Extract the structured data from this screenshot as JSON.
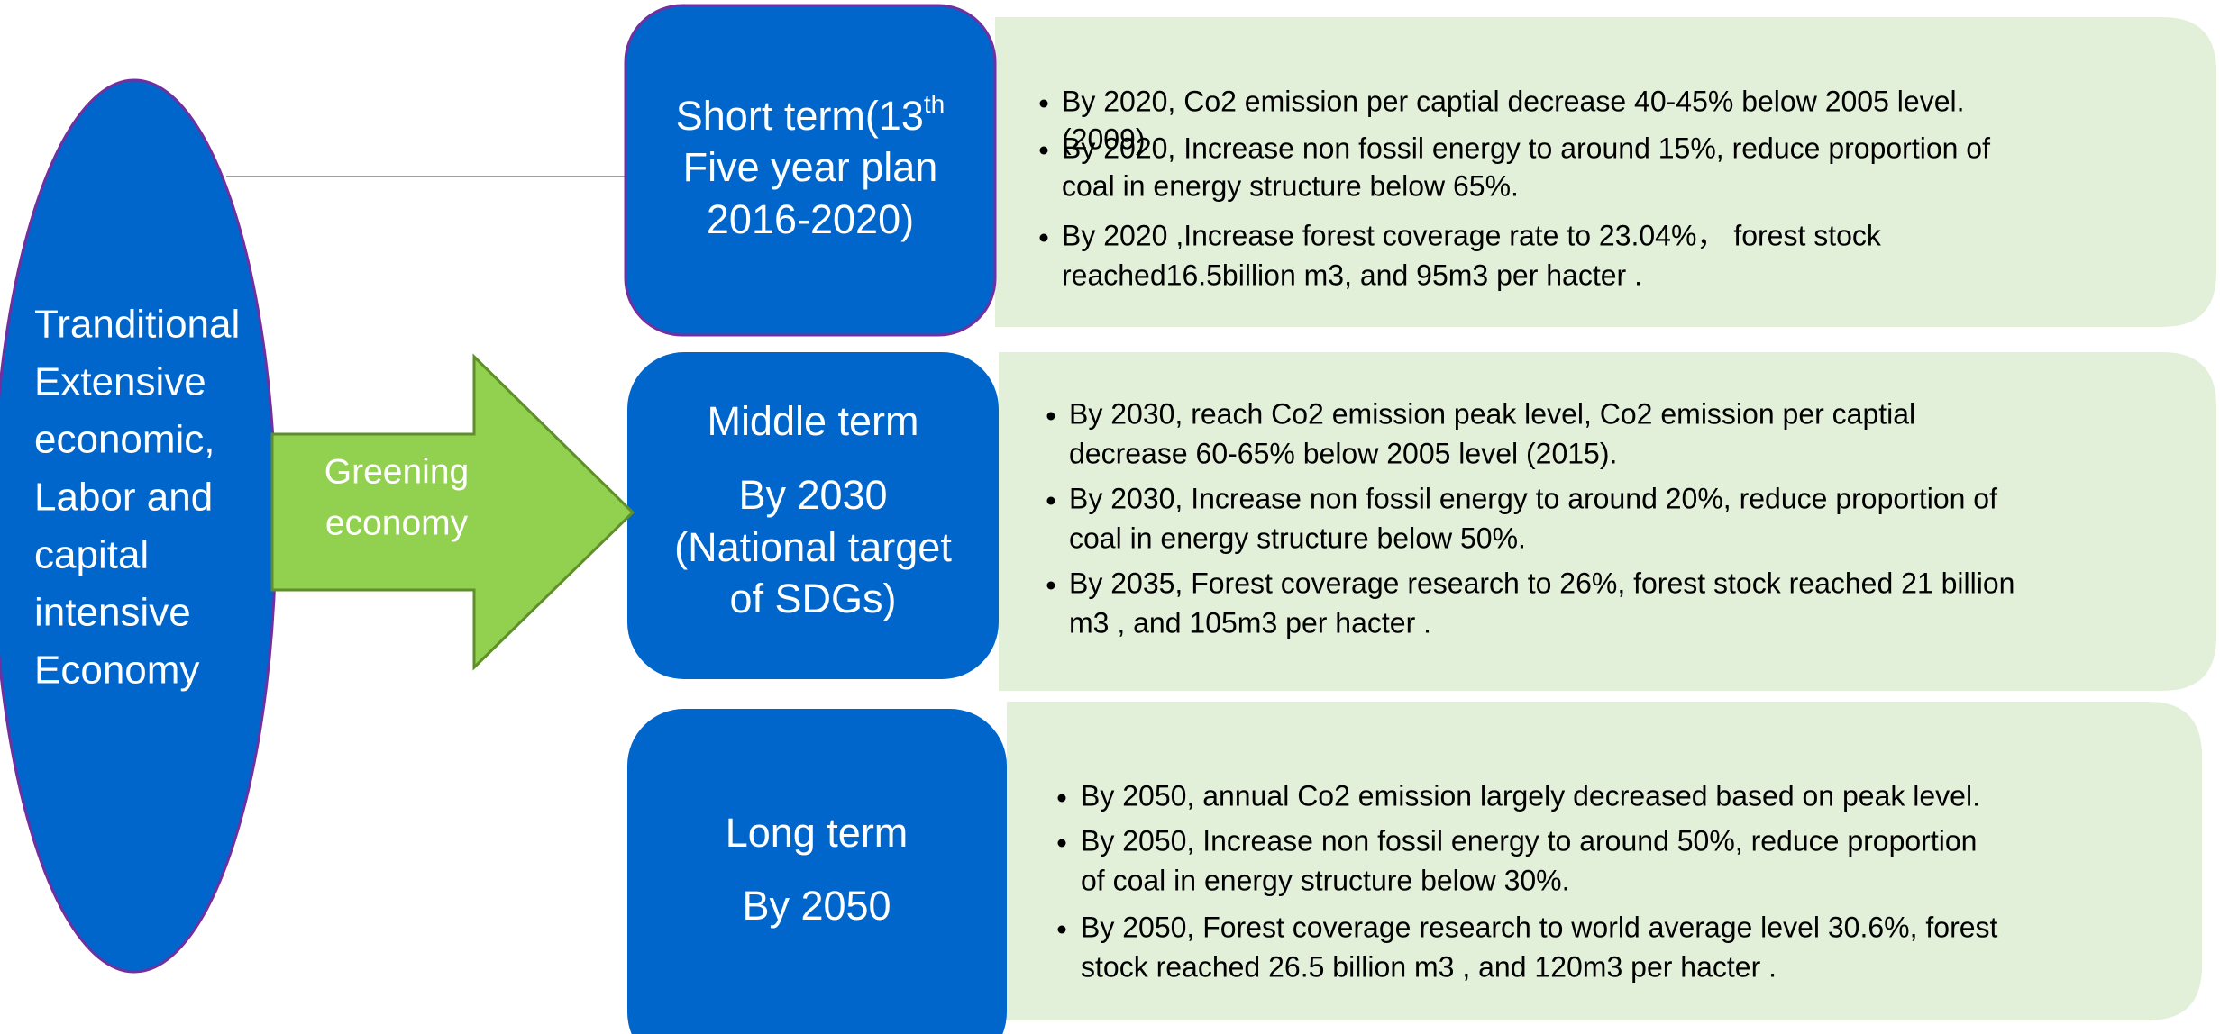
{
  "ellipse": {
    "lines": [
      "Tranditional",
      "Extensive",
      "economic,",
      "Labor and",
      "capital",
      "intensive",
      "Economy"
    ]
  },
  "arrow": {
    "lines": [
      "Greening",
      "economy"
    ]
  },
  "stages": [
    {
      "title_lines": [
        "Short term(13",
        "Five year plan",
        "2016-2020)"
      ],
      "title_sup": "th",
      "bullets": [
        [
          "By 2020, Co2 emission per captial decrease 40-45% below 2005 level.",
          "(2009)"
        ],
        [
          "By 2020, Increase non fossil energy to around 15%, reduce proportion of",
          "coal in energy structure below 65%."
        ],
        [
          "By 2020 ,Increase forest coverage rate to 23.04%， forest stock",
          "reached16.5billion m3, and 95m3 per hacter ."
        ]
      ]
    },
    {
      "title_lines": [
        "Middle term",
        "By 2030",
        "(National target",
        "of SDGs)"
      ],
      "bullets": [
        [
          "By 2030, reach Co2 emission peak level, Co2 emission per captial",
          "decrease 60-65% below 2005 level (2015)."
        ],
        [
          "By 2030, Increase non fossil energy to around 20%, reduce proportion of",
          "coal in energy structure below 50%."
        ],
        [
          "By 2035, Forest coverage research to 26%, forest stock reached 21 billion",
          "m3 , and 105m3 per hacter ."
        ]
      ]
    },
    {
      "title_lines": [
        "Long term",
        "By 2050"
      ],
      "bullets": [
        [
          "By 2050, annual Co2 emission largely decreased based on  peak level."
        ],
        [
          "By 2050, Increase non fossil energy to around 50%, reduce proportion",
          "of coal in energy structure below 30%."
        ],
        [
          "By 2050, Forest coverage research to world average level 30.6%,   forest",
          "stock reached 26.5 billion m3 , and 120m3 per hacter ."
        ]
      ]
    }
  ]
}
